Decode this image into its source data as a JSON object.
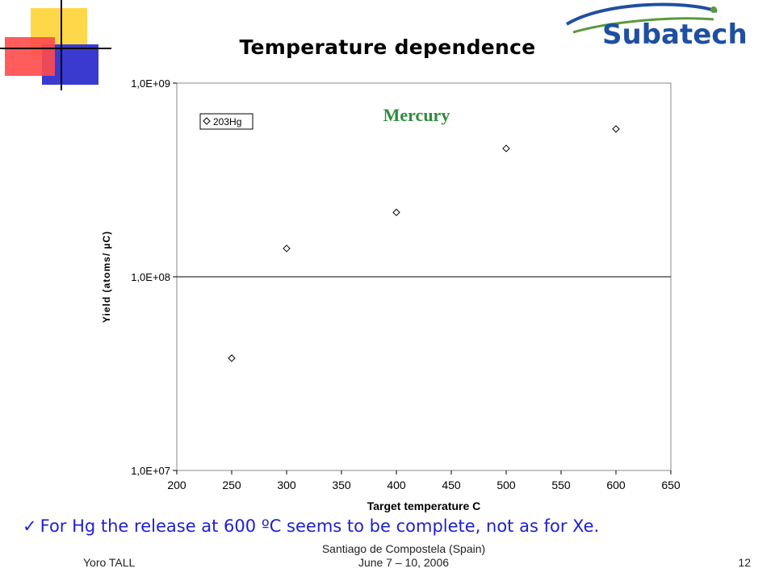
{
  "slide": {
    "title": "Temperature dependence",
    "bullet": "For Hg the release at 600 ºC seems to be complete, not as for Xe.",
    "footer_left": "Yoro TALL",
    "footer_center_line1": "Santiago de Compostela (Spain)",
    "footer_center_line2": "June 7 – 10, 2006",
    "page_number": "12",
    "logo_text": "Subatech"
  },
  "colors": {
    "bullet_text": "#1f1fd0",
    "annotation": "#2e8b3a",
    "logo_blue": "#1f4fa0",
    "logo_green": "#5a9a3a",
    "deco_yellow": "#ffd84a",
    "deco_red": "#ff4a4a",
    "deco_blue": "#3a3ad0"
  },
  "chart_data": {
    "type": "scatter",
    "xlabel": "Target temperature C",
    "ylabel": "Yield (atoms/ µC)",
    "xlim": [
      200,
      650
    ],
    "ylim": [
      10000000,
      1000000000
    ],
    "y_scale": "log",
    "x_ticks": [
      "200",
      "250",
      "300",
      "350",
      "400",
      "450",
      "500",
      "550",
      "600",
      "650"
    ],
    "y_ticks": [
      "1,0E+07",
      "1,0E+08",
      "1,0E+09"
    ],
    "gridlines": "horizontal at 1,0E+08",
    "annotation": "Mercury",
    "legend": "top-left",
    "series": [
      {
        "name": "203Hg",
        "marker": "diamond",
        "points": [
          {
            "x": 250,
            "y": 38000000
          },
          {
            "x": 300,
            "y": 140000000
          },
          {
            "x": 400,
            "y": 215000000
          },
          {
            "x": 500,
            "y": 460000000
          },
          {
            "x": 600,
            "y": 580000000
          }
        ]
      }
    ]
  }
}
